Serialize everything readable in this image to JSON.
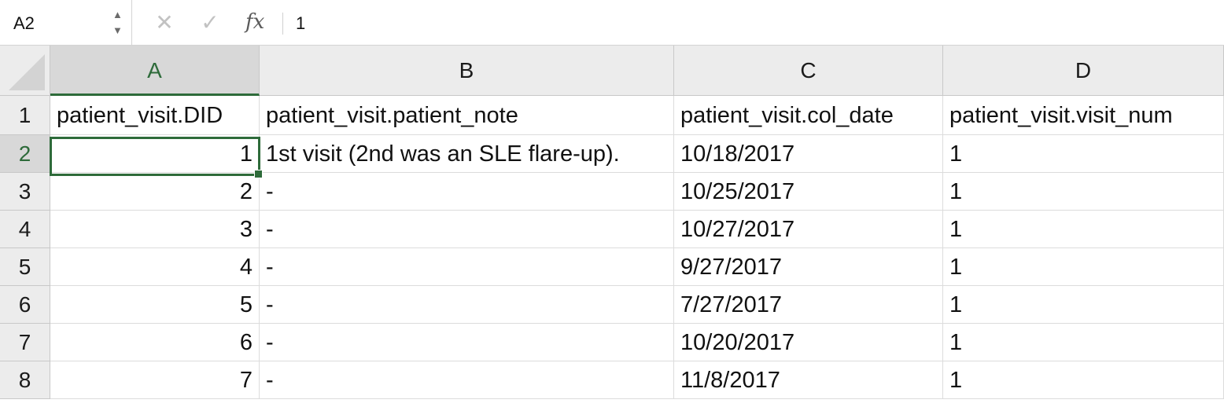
{
  "formula_bar": {
    "name_box": "A2",
    "stepper_up": "▲",
    "stepper_down": "▼",
    "cancel_icon": "✕",
    "enter_icon": "✓",
    "fx_label": "fx",
    "formula": "1"
  },
  "grid": {
    "selected_cell": "A2",
    "columns": [
      "A",
      "B",
      "C",
      "D"
    ],
    "rows": [
      {
        "num": "1",
        "cells": [
          "patient_visit.DID",
          "patient_visit.patient_note",
          "patient_visit.col_date",
          "patient_visit.visit_num"
        ]
      },
      {
        "num": "2",
        "cells": [
          "1",
          "1st visit (2nd was an SLE flare-up).",
          "10/18/2017",
          "1"
        ]
      },
      {
        "num": "3",
        "cells": [
          "2",
          "-",
          "10/25/2017",
          "1"
        ]
      },
      {
        "num": "4",
        "cells": [
          "3",
          "-",
          "10/27/2017",
          "1"
        ]
      },
      {
        "num": "5",
        "cells": [
          "4",
          "-",
          "9/27/2017",
          "1"
        ]
      },
      {
        "num": "6",
        "cells": [
          "5",
          "-",
          "7/27/2017",
          "1"
        ]
      },
      {
        "num": "7",
        "cells": [
          "6",
          "-",
          "10/20/2017",
          "1"
        ]
      },
      {
        "num": "8",
        "cells": [
          "7",
          "-",
          "11/8/2017",
          "1"
        ]
      }
    ]
  },
  "colors": {
    "selection": "#2e6b3a",
    "header_bg": "#ececec",
    "header_selected_bg": "#d8d8d8",
    "gridline": "#dcdcdc"
  }
}
